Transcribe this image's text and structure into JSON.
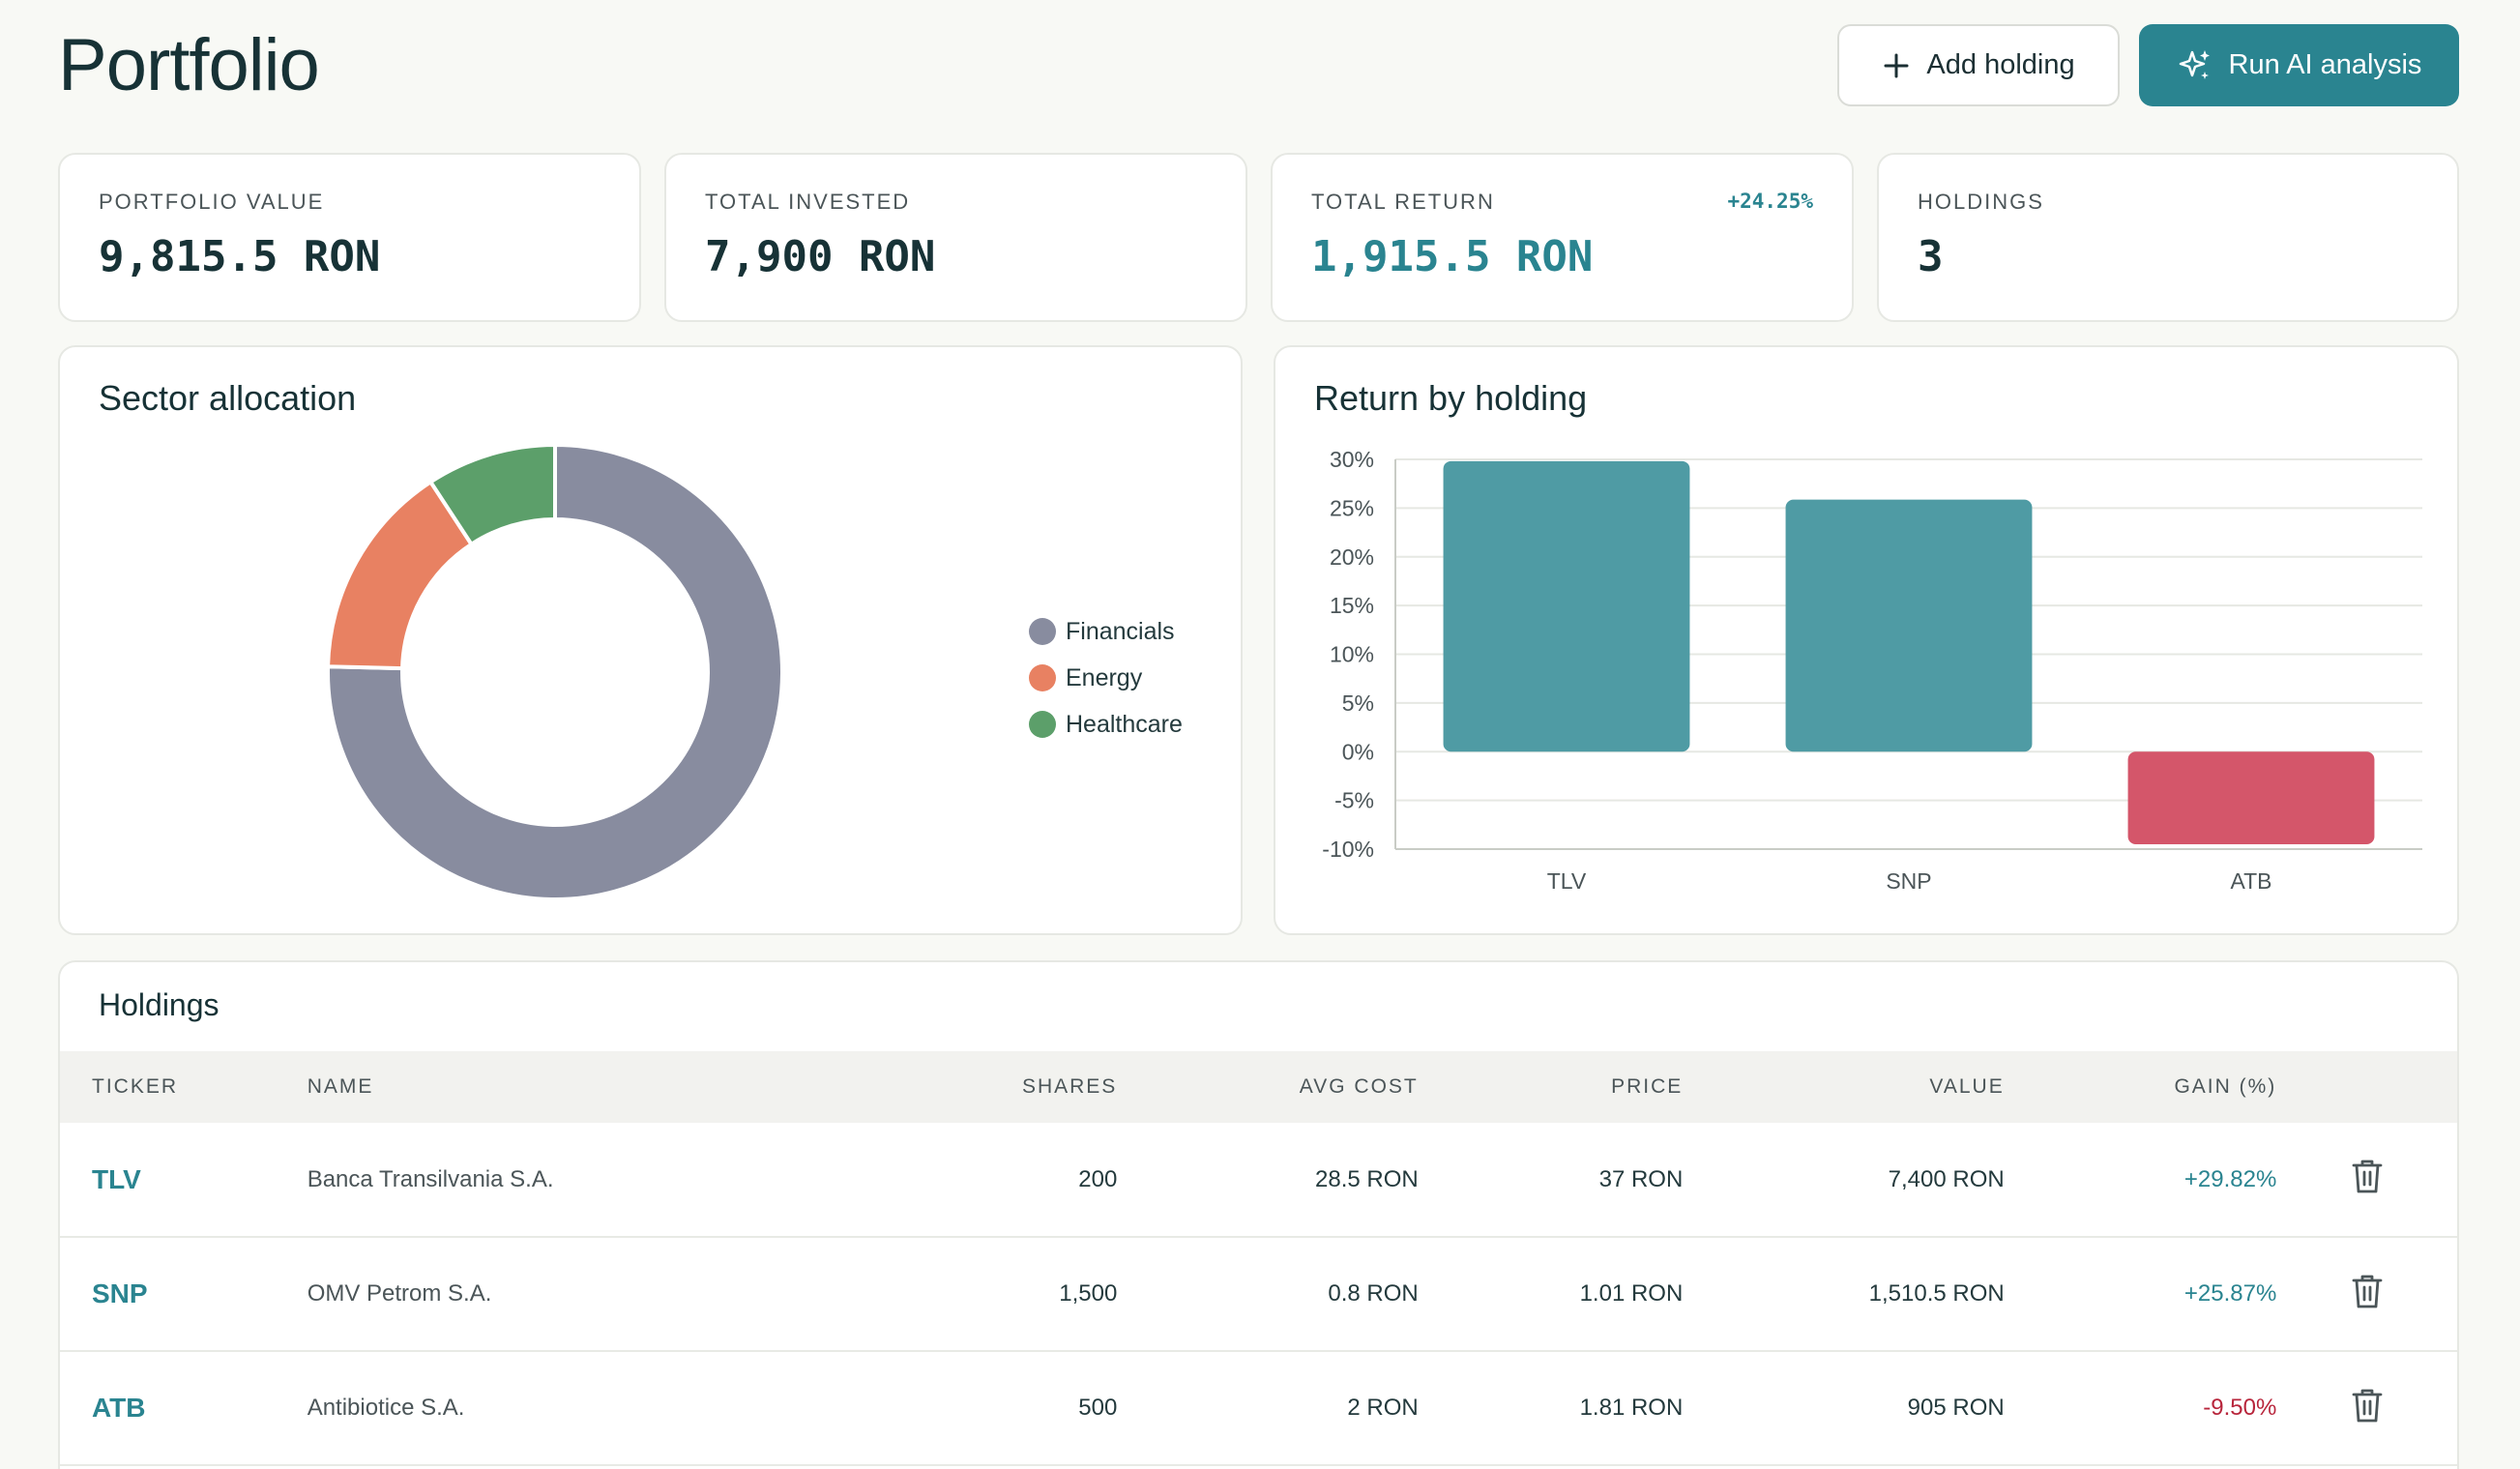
{
  "header": {
    "title": "Portfolio",
    "add_label": "Add holding",
    "ai_label": "Run AI analysis"
  },
  "stats": {
    "portfolio_value": {
      "label": "PORTFOLIO VALUE",
      "value": "9,815.5 RON"
    },
    "total_invested": {
      "label": "TOTAL INVESTED",
      "value": "7,900 RON"
    },
    "total_return": {
      "label": "TOTAL RETURN",
      "value": "1,915.5 RON",
      "badge": "+24.25%"
    },
    "holdings": {
      "label": "HOLDINGS",
      "value": "3"
    }
  },
  "sector_panel": {
    "title": "Sector allocation"
  },
  "return_panel": {
    "title": "Return by holding"
  },
  "chart_data": [
    {
      "type": "pie",
      "style": "donut",
      "categories": [
        "Financials",
        "Energy",
        "Healthcare"
      ],
      "values": [
        7400,
        1510.5,
        905
      ],
      "colors": [
        "#888c9f",
        "#e88162",
        "#5c9f6a"
      ],
      "legend": "right"
    },
    {
      "type": "bar",
      "categories": [
        "TLV",
        "SNP",
        "ATB"
      ],
      "values": [
        29.82,
        25.87,
        -9.5
      ],
      "ylim": [
        -10,
        30
      ],
      "yticks": [
        "30%",
        "25%",
        "20%",
        "15%",
        "10%",
        "5%",
        "0%",
        "-5%",
        "-10%"
      ],
      "colors": {
        "positive": "#4f9ba4",
        "negative": "#d4566a"
      },
      "grid": true
    }
  ],
  "holdings": {
    "title": "Holdings",
    "columns": [
      "TICKER",
      "NAME",
      "SHARES",
      "AVG COST",
      "PRICE",
      "VALUE",
      "GAIN (%)"
    ],
    "rows": [
      {
        "ticker": "TLV",
        "name": "Banca Transilvania S.A.",
        "shares": "200",
        "avg_cost": "28.5 RON",
        "price": "37 RON",
        "value": "7,400 RON",
        "gain": "+29.82%",
        "gain_sign": "pos"
      },
      {
        "ticker": "SNP",
        "name": "OMV Petrom S.A.",
        "shares": "1,500",
        "avg_cost": "0.8 RON",
        "price": "1.01 RON",
        "value": "1,510.5 RON",
        "gain": "+25.87%",
        "gain_sign": "pos"
      },
      {
        "ticker": "ATB",
        "name": "Antibiotice S.A.",
        "shares": "500",
        "avg_cost": "2 RON",
        "price": "1.81 RON",
        "value": "905 RON",
        "gain": "-9.50%",
        "gain_sign": "neg"
      }
    ]
  },
  "colors": {
    "accent": "#2a8490",
    "background": "#f8f9f5",
    "negative": "#b8263c"
  },
  "icons": {
    "add": "plus-icon",
    "ai": "sparkles-icon",
    "delete": "trash-icon"
  }
}
